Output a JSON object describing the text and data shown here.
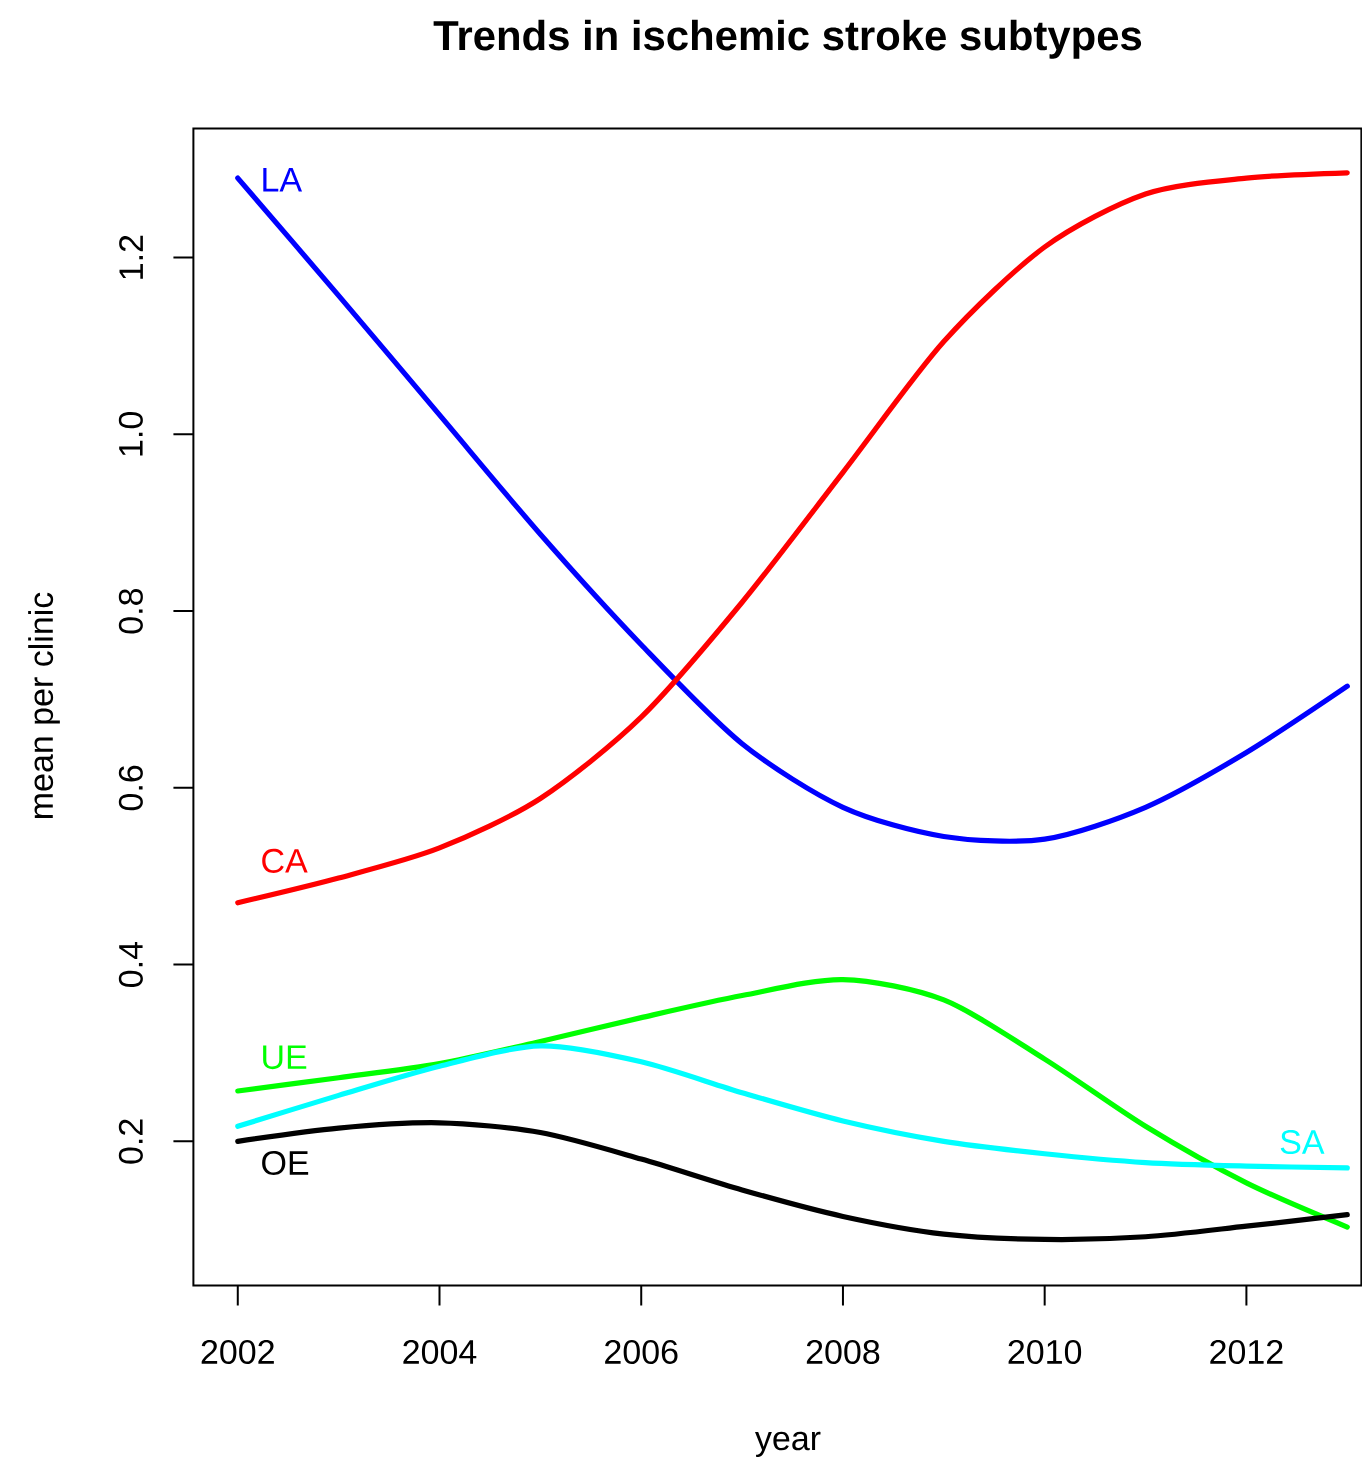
{
  "chart_data": {
    "type": "line",
    "title": "Trends in ischemic stroke subtypes",
    "xlabel": "year",
    "ylabel": "mean per clinic",
    "x": [
      2002,
      2003,
      2004,
      2005,
      2006,
      2007,
      2008,
      2009,
      2010,
      2011,
      2012,
      2013
    ],
    "xlim": [
      2001.56,
      2013.14
    ],
    "ylim": [
      0.037,
      1.346
    ],
    "xticks": [
      2002,
      2004,
      2006,
      2008,
      2010,
      2012
    ],
    "yticks": [
      0.2,
      0.4,
      0.6,
      0.8,
      {
        "value": 1,
        "label": "1.0"
      },
      1.2
    ],
    "marker": "none",
    "line_style": "solid",
    "series": [
      {
        "name": "LA",
        "color": "#0000ff",
        "values": [
          1.29,
          1.157,
          1.022,
          0.887,
          0.762,
          0.65,
          0.578,
          0.545,
          0.542,
          0.578,
          0.64,
          0.715
        ]
      },
      {
        "name": "CA",
        "color": "#ff0000",
        "values": [
          0.47,
          0.498,
          0.532,
          0.588,
          0.68,
          0.81,
          0.957,
          1.105,
          1.212,
          1.272,
          1.29,
          1.296
        ]
      },
      {
        "name": "UE",
        "color": "#00ff00",
        "values": [
          0.257,
          0.272,
          0.288,
          0.313,
          0.34,
          0.365,
          0.383,
          0.36,
          0.293,
          0.217,
          0.153,
          0.103
        ]
      },
      {
        "name": "SA",
        "color": "#00ffff",
        "values": [
          0.217,
          0.252,
          0.285,
          0.308,
          0.29,
          0.255,
          0.223,
          0.2,
          0.186,
          0.176,
          0.172,
          0.17
        ]
      },
      {
        "name": "OE",
        "color": "#000000",
        "values": [
          0.2,
          0.215,
          0.221,
          0.21,
          0.18,
          0.145,
          0.115,
          0.095,
          0.089,
          0.092,
          0.104,
          0.117
        ]
      }
    ]
  }
}
